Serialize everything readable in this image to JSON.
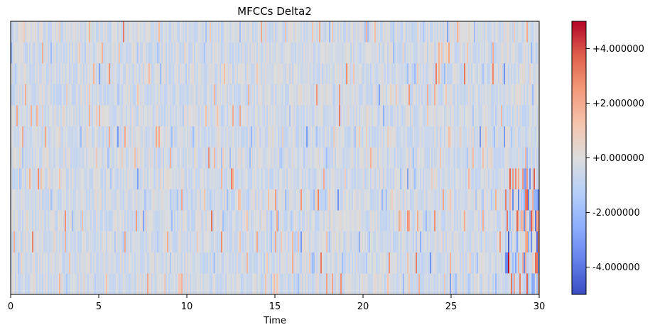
{
  "chart_data": {
    "type": "heatmap",
    "title": "MFCCs Delta2",
    "xlabel": "Time",
    "ylabel": "",
    "xlim": [
      0,
      30
    ],
    "xticks": [
      {
        "value": 0,
        "label": "0"
      },
      {
        "value": 5,
        "label": "5"
      },
      {
        "value": 10,
        "label": "10"
      },
      {
        "value": 15,
        "label": "15"
      },
      {
        "value": 20,
        "label": "20"
      },
      {
        "value": 25,
        "label": "25"
      },
      {
        "value": 30,
        "label": "30"
      }
    ],
    "n_coefficients": 13,
    "y_axis_ticks": "none",
    "colormap": "coolwarm",
    "colormap_stops": [
      "#3b4cc0",
      "#6282ea",
      "#8db0fe",
      "#b8d0f9",
      "#dcdddd",
      "#f5c4ad",
      "#f49a7b",
      "#de604d",
      "#b40426"
    ],
    "value_range": [
      -5,
      5
    ],
    "colorbar": {
      "range": [
        -5,
        5
      ],
      "ticks": [
        {
          "value": 4,
          "label": "+4.000000"
        },
        {
          "value": 2,
          "label": "+2.000000"
        },
        {
          "value": 0,
          "label": "+0.000000"
        },
        {
          "value": -2,
          "label": "-2.000000"
        },
        {
          "value": -4,
          "label": "-4.000000"
        }
      ]
    },
    "distribution": "values mostly near 0 (light grey-blue) with sparse positive and negative spikes; strongest extremes near t≈28.2–30 in the lowest coefficient rows (approx. -5 to +5)",
    "notable_values": [
      {
        "time": 28.25,
        "row_from_bottom": 2,
        "value": -4.6
      },
      {
        "time": 28.25,
        "row_from_bottom": 1,
        "value": 4.8
      },
      {
        "time": 29.9,
        "row_from_bottom": 1,
        "value": 3.2
      },
      {
        "time": 29.9,
        "row_from_bottom": 2,
        "value": -4.2
      },
      {
        "time": 29.9,
        "row_from_bottom": 3,
        "value": 2.2
      }
    ]
  }
}
